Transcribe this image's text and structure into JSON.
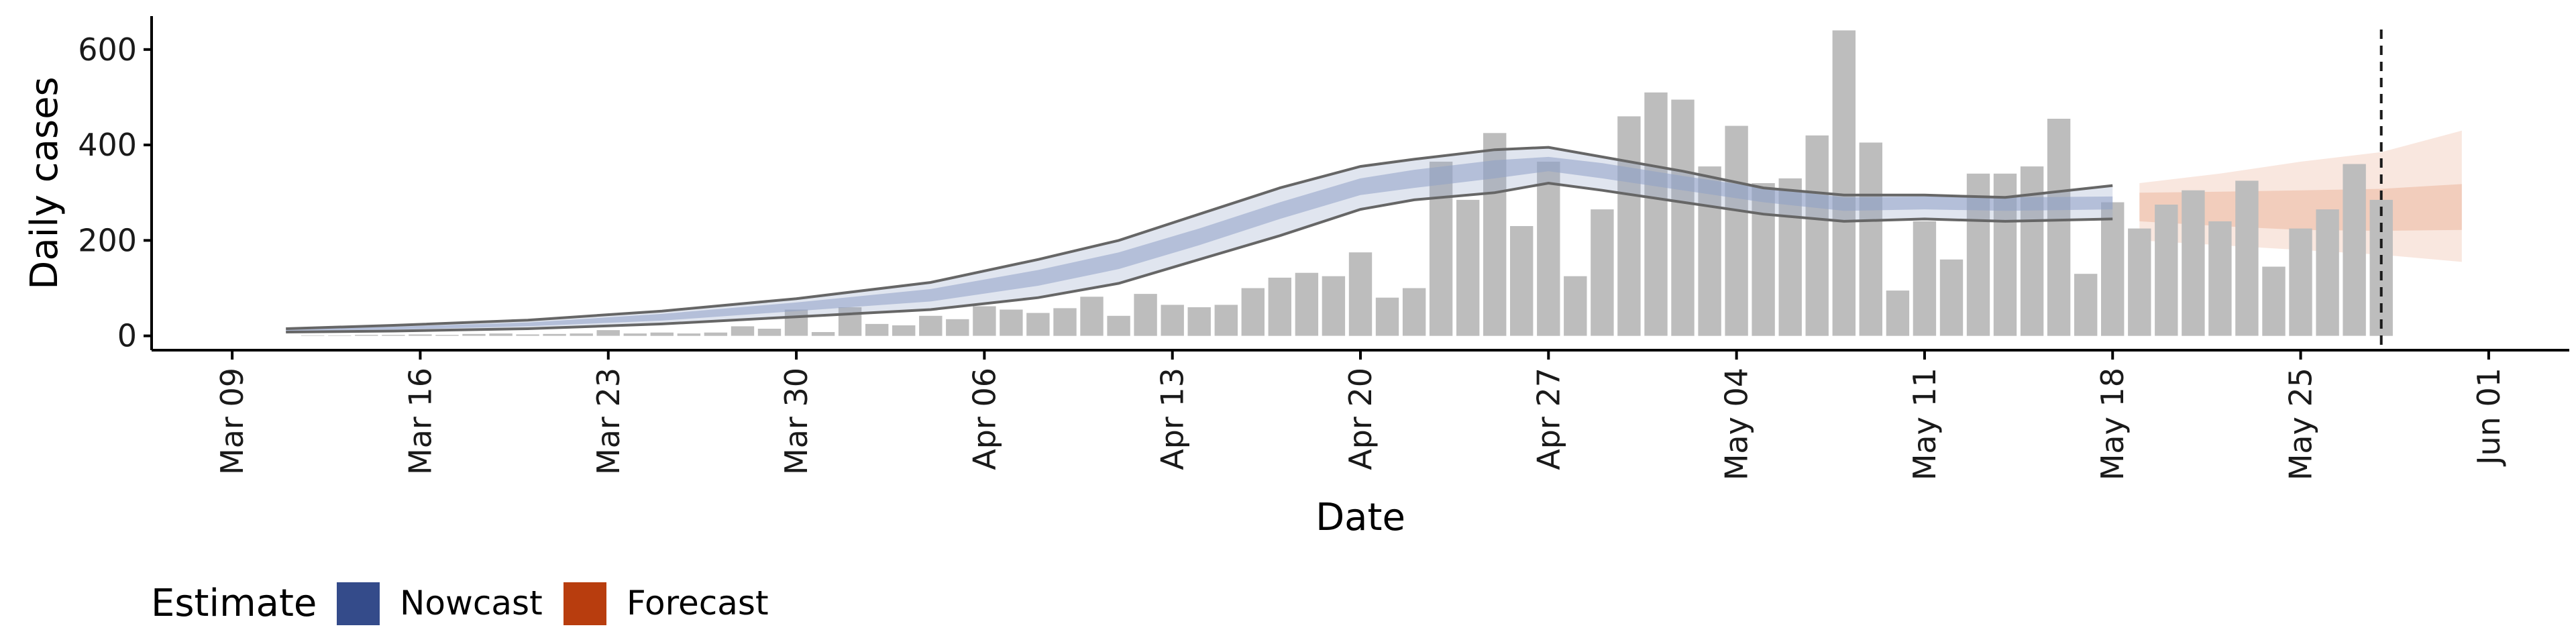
{
  "chart_data": {
    "type": "bar",
    "title": "",
    "xlabel": "Date",
    "ylabel": "Daily cases",
    "x_axis": {
      "start": "2020-03-06",
      "end": "2020-06-04",
      "ticks": [
        "2020-03-09",
        "2020-03-16",
        "2020-03-23",
        "2020-03-30",
        "2020-04-06",
        "2020-04-13",
        "2020-04-20",
        "2020-04-27",
        "2020-05-04",
        "2020-05-11",
        "2020-05-18",
        "2020-05-25",
        "2020-06-01"
      ],
      "tick_labels": [
        "Mar 09",
        "Mar 16",
        "Mar 23",
        "Mar 30",
        "Apr 06",
        "Apr 13",
        "Apr 20",
        "Apr 27",
        "May 04",
        "May 11",
        "May 18",
        "May 25",
        "Jun 01"
      ]
    },
    "y_axis": {
      "range": [
        -30,
        670
      ],
      "ticks": [
        0,
        200,
        400,
        600
      ],
      "tick_labels": [
        "0",
        "200",
        "400",
        "600"
      ]
    },
    "grid": false,
    "legend": {
      "position": "bottom-left",
      "title": "Estimate",
      "entries": [
        {
          "label": "Nowcast",
          "color": "#344b8a"
        },
        {
          "label": "Forecast",
          "color": "#b83d0e"
        }
      ]
    },
    "colors": {
      "bars": "#bdbdbd",
      "nowcast": "#8fa1c7",
      "forecast": "#e9a98d",
      "outline": "#666666",
      "vline": "#1a1a1a"
    },
    "reported_cases": {
      "start_date": "2020-03-10",
      "values": [
        0,
        0,
        1,
        1,
        2,
        2,
        3,
        2,
        4,
        5,
        3,
        4,
        5,
        12,
        5,
        7,
        5,
        7,
        20,
        15,
        55,
        8,
        60,
        25,
        22,
        42,
        35,
        62,
        55,
        48,
        58,
        82,
        42,
        88,
        65,
        60,
        65,
        100,
        122,
        132,
        125,
        175,
        80,
        100,
        365,
        285,
        425,
        230,
        365,
        125,
        265,
        460,
        510,
        495,
        355,
        440,
        320,
        330,
        420,
        640,
        405,
        95,
        240,
        160,
        340,
        340,
        355,
        455,
        130,
        280,
        225,
        275,
        305,
        240,
        325,
        145,
        225,
        265,
        360,
        285
      ]
    },
    "nowcast": {
      "dates": [
        "2020-03-11",
        "2020-03-15",
        "2020-03-20",
        "2020-03-25",
        "2020-03-30",
        "2020-04-04",
        "2020-04-08",
        "2020-04-11",
        "2020-04-14",
        "2020-04-17",
        "2020-04-20",
        "2020-04-22",
        "2020-04-25",
        "2020-04-27",
        "2020-04-29",
        "2020-05-02",
        "2020-05-05",
        "2020-05-08",
        "2020-05-11",
        "2020-05-14",
        "2020-05-18"
      ],
      "lower": [
        8,
        10,
        15,
        25,
        40,
        55,
        80,
        110,
        160,
        210,
        265,
        285,
        300,
        320,
        305,
        280,
        255,
        240,
        245,
        240,
        245
      ],
      "inner_lower": [
        10,
        13,
        20,
        32,
        52,
        72,
        105,
        140,
        190,
        245,
        295,
        310,
        330,
        345,
        330,
        305,
        280,
        262,
        265,
        262,
        265
      ],
      "median": [
        12,
        16,
        24,
        40,
        60,
        85,
        120,
        155,
        205,
        260,
        310,
        328,
        350,
        362,
        348,
        320,
        295,
        278,
        280,
        276,
        278
      ],
      "inner_upper": [
        14,
        19,
        28,
        46,
        70,
        98,
        138,
        175,
        225,
        280,
        330,
        348,
        368,
        375,
        362,
        335,
        310,
        290,
        292,
        290,
        292
      ],
      "upper": [
        15,
        22,
        33,
        52,
        78,
        112,
        160,
        200,
        255,
        310,
        355,
        370,
        390,
        395,
        375,
        345,
        310,
        295,
        295,
        290,
        315
      ]
    },
    "forecast": {
      "dates": [
        "2020-05-19",
        "2020-05-22",
        "2020-05-25",
        "2020-05-28",
        "2020-05-31"
      ],
      "outer_lower": [
        200,
        190,
        180,
        170,
        155
      ],
      "inner_lower": [
        240,
        230,
        222,
        220,
        222
      ],
      "inner_upper": [
        300,
        302,
        305,
        308,
        318
      ],
      "outer_upper": [
        320,
        340,
        365,
        385,
        430
      ],
      "median": [
        270,
        266,
        263,
        264,
        270
      ]
    },
    "reference_line_date": "2020-05-28"
  }
}
